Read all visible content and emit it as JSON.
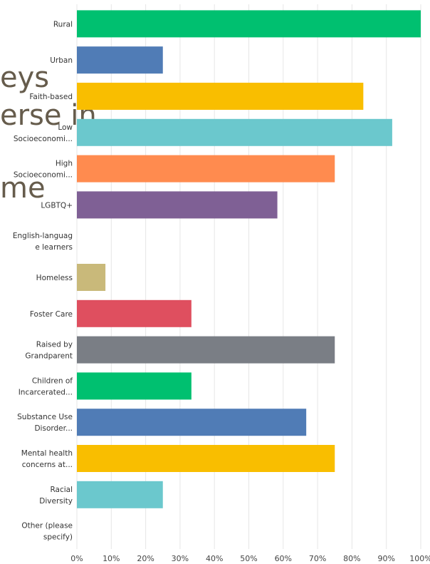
{
  "background_text": [
    "eys",
    "erse in",
    "me"
  ],
  "chart_data": {
    "type": "bar",
    "orientation": "horizontal",
    "categories": [
      [
        "Rural"
      ],
      [
        "Urban"
      ],
      [
        "Faith-based"
      ],
      [
        "Low",
        "Socioeconomi..."
      ],
      [
        "High",
        "Socioeconomi..."
      ],
      [
        "LGBTQ+"
      ],
      [
        "English-languag",
        "e learners"
      ],
      [
        "Homeless"
      ],
      [
        "Foster Care"
      ],
      [
        "Raised by",
        "Grandparent"
      ],
      [
        "Children of",
        "Incarcerated..."
      ],
      [
        "Substance Use",
        "Disorder..."
      ],
      [
        "Mental health",
        "concerns at..."
      ],
      [
        "Racial",
        "Diversity"
      ],
      [
        "Other (please",
        "specify)"
      ]
    ],
    "values": [
      100,
      25,
      83.3,
      91.7,
      75,
      58.3,
      0,
      8.3,
      33.3,
      75,
      33.3,
      66.7,
      75,
      25,
      0
    ],
    "colors": [
      "#00c070",
      "#507cb6",
      "#f9be00",
      "#6bc8cd",
      "#ff8b4f",
      "#7f6095",
      "#00c070",
      "#c9b97a",
      "#df4f5f",
      "#7a7e85",
      "#00c070",
      "#507cb6",
      "#f9be00",
      "#6bc8cd",
      "#00c070"
    ],
    "xlim": [
      0,
      100
    ],
    "xticks": [
      0,
      10,
      20,
      30,
      40,
      50,
      60,
      70,
      80,
      90,
      100
    ],
    "tick_suffix": "%",
    "grid": true,
    "title": "",
    "xlabel": "",
    "ylabel": ""
  }
}
